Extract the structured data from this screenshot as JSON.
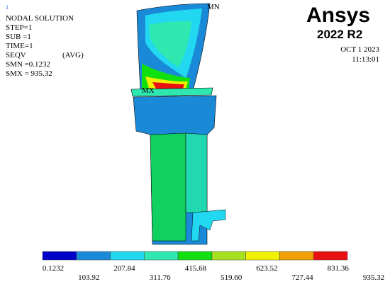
{
  "corner_mark": "1",
  "header": {
    "lines": [
      "NODAL SOLUTION",
      "STEP=1",
      "SUB =1",
      "TIME=1",
      "SEQV",
      "SMN =0.1232",
      "SMX = 935.32"
    ],
    "avg": "(AVG)"
  },
  "logo": {
    "brand": "Ansys",
    "version": "2022 R2"
  },
  "timestamp": {
    "date": "OCT 1 2023",
    "time": "11:13:01"
  },
  "markers": {
    "min": "MN",
    "max": "MX"
  },
  "legend": {
    "colors": [
      "#0000c8",
      "#1a8ad8",
      "#22d8f0",
      "#2ee8b0",
      "#10e010",
      "#a8e020",
      "#f0f000",
      "#f0a000",
      "#e81010"
    ],
    "labels": [
      "0.1232",
      "103.92",
      "207.84",
      "311.76",
      "415.68",
      "519.60",
      "623.52",
      "727.44",
      "831.36",
      "935.32"
    ]
  }
}
